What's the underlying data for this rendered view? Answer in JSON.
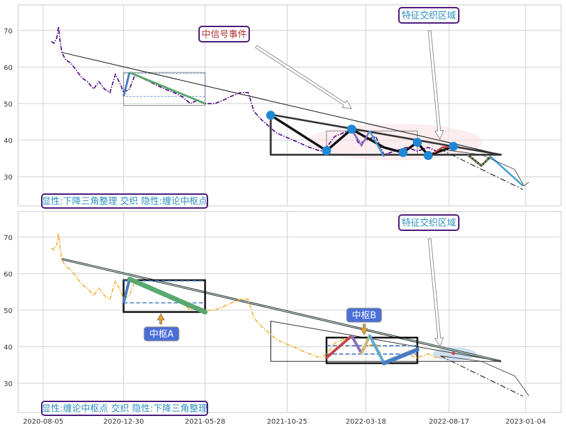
{
  "chart_data": [
    {
      "type": "line",
      "panel": "top",
      "x_ticks": [
        "2020-08-05",
        "2020-12-30",
        "2021-05-28",
        "2021-10-25",
        "2022-03-18",
        "2022-08-17",
        "2023-01-04"
      ],
      "yticks": [
        "30",
        "40",
        "50",
        "60",
        "70"
      ],
      "ylim": [
        22,
        77
      ],
      "grid": true,
      "price_color": "#4b0082",
      "price": [
        [
          "2020-08-20",
          67
        ],
        [
          "2020-08-25",
          66.5
        ],
        [
          "2020-08-30",
          68
        ],
        [
          "2020-09-02",
          71
        ],
        [
          "2020-09-05",
          67
        ],
        [
          "2020-09-08",
          64
        ],
        [
          "2020-09-15",
          62
        ],
        [
          "2020-09-25",
          61
        ],
        [
          "2020-10-05",
          59
        ],
        [
          "2020-10-15",
          57
        ],
        [
          "2020-10-25",
          56
        ],
        [
          "2020-11-05",
          54
        ],
        [
          "2020-11-15",
          56
        ],
        [
          "2020-11-25",
          54
        ],
        [
          "2020-12-05",
          53
        ],
        [
          "2020-12-15",
          58
        ],
        [
          "2020-12-25",
          55
        ],
        [
          "2020-12-30",
          53
        ],
        [
          "2021-01-10",
          54
        ],
        [
          "2021-01-20",
          58
        ],
        [
          "2021-02-01",
          57
        ],
        [
          "2021-02-15",
          56
        ],
        [
          "2021-03-01",
          55
        ],
        [
          "2021-03-15",
          54
        ],
        [
          "2021-04-01",
          53
        ],
        [
          "2021-04-15",
          52
        ],
        [
          "2021-05-01",
          50
        ],
        [
          "2021-05-15",
          51
        ],
        [
          "2021-05-28",
          50
        ],
        [
          "2021-06-15",
          50
        ],
        [
          "2021-07-01",
          51
        ],
        [
          "2021-07-15",
          52
        ],
        [
          "2021-08-01",
          53
        ],
        [
          "2021-08-15",
          53
        ],
        [
          "2021-08-25",
          48
        ],
        [
          "2021-09-05",
          46
        ],
        [
          "2021-09-20",
          44
        ],
        [
          "2021-10-05",
          42
        ],
        [
          "2021-10-20",
          41
        ],
        [
          "2021-11-05",
          40
        ],
        [
          "2021-11-20",
          39
        ],
        [
          "2021-12-05",
          38
        ],
        [
          "2021-12-25",
          37
        ],
        [
          "2022-01-05",
          38
        ],
        [
          "2022-01-20",
          41
        ],
        [
          "2022-02-05",
          42
        ],
        [
          "2022-02-20",
          43
        ],
        [
          "2022-03-05",
          39
        ],
        [
          "2022-03-18",
          40
        ],
        [
          "2022-04-05",
          41
        ],
        [
          "2022-04-20",
          36
        ],
        [
          "2022-05-10",
          37
        ],
        [
          "2022-06-01",
          38
        ],
        [
          "2022-06-20",
          37
        ],
        [
          "2022-07-10",
          38
        ],
        [
          "2022-07-25",
          37
        ],
        [
          "2022-08-17",
          37.5
        ]
      ],
      "triangle": {
        "upper": [
          [
            "2021-09-25",
            47
          ],
          [
            "2022-11-20",
            36
          ]
        ],
        "lower": [
          [
            "2021-09-25",
            36
          ],
          [
            "2022-11-20",
            36
          ]
        ]
      },
      "trend_line": [
        [
          "2020-09-08",
          64
        ],
        [
          "2022-11-20",
          36
        ]
      ],
      "forecast_curve": [
        [
          "2022-08-01",
          37.5
        ],
        [
          "2022-10-15",
          36
        ],
        [
          "2022-12-15",
          32
        ],
        [
          "2023-01-01",
          27.5
        ],
        [
          "2023-01-10",
          28.5
        ]
      ],
      "forecast_dashdot": [
        [
          "2022-08-01",
          37.5
        ],
        [
          "2022-12-30",
          26.5
        ]
      ],
      "signal_points": [
        [
          "2021-09-25",
          46.8
        ],
        [
          "2022-01-05",
          37.1
        ],
        [
          "2022-02-20",
          43
        ],
        [
          "2022-05-25",
          36.6
        ],
        [
          "2022-06-20",
          39.4
        ],
        [
          "2022-07-10",
          35.8
        ],
        [
          "2022-08-25",
          38.3
        ]
      ],
      "signal_point_color": "#1e88d4",
      "heavy_path": [
        [
          "2021-09-25",
          46.8
        ],
        [
          "2022-01-05",
          37.1
        ],
        [
          "2022-02-20",
          43
        ],
        [
          "2022-04-20",
          38
        ],
        [
          "2022-05-25",
          36.6
        ],
        [
          "2022-06-20",
          39.4
        ],
        [
          "2022-07-10",
          35.8
        ],
        [
          "2022-08-25",
          38.3
        ]
      ],
      "hub_box_small": {
        "x": [
          "2020-12-30",
          "2021-05-28"
        ],
        "y": [
          49.5,
          58.5
        ]
      },
      "hub_box_mid": {
        "x": [
          "2022-01-05",
          "2022-06-20"
        ],
        "y": [
          36,
          42.5
        ]
      },
      "green_stroke": [
        [
          "2021-01-10",
          58.5
        ],
        [
          "2021-05-28",
          50
        ]
      ],
      "blue_stroke": [
        [
          "2020-12-30",
          52
        ],
        [
          "2021-01-10",
          58.5
        ]
      ],
      "colored_tail": [
        [
          "2022-09-20",
          36
        ],
        [
          "2022-10-15",
          33
        ],
        [
          "2022-11-01",
          35.5
        ]
      ],
      "ellipse": {
        "center": [
          "2022-05-10",
          39.5
        ],
        "rx_days": 160,
        "ry": 5
      },
      "annotations": {
        "signal_event": "中信号事件",
        "feature_zone": "特征交织区域",
        "footer": "显性:下降三角整理 交织 隐性:缠论中枢点"
      }
    },
    {
      "type": "line",
      "panel": "bottom",
      "x_ticks": [
        "2020-08-05",
        "2020-12-30",
        "2021-05-28",
        "2021-10-25",
        "2022-03-18",
        "2022-08-17",
        "2023-01-04"
      ],
      "yticks": [
        "30",
        "40",
        "50",
        "60",
        "70"
      ],
      "ylim": [
        22,
        77
      ],
      "grid": true,
      "price_color": "#f0b030",
      "price": [
        [
          "2020-08-20",
          67
        ],
        [
          "2020-08-25",
          66.5
        ],
        [
          "2020-08-30",
          68
        ],
        [
          "2020-09-02",
          71
        ],
        [
          "2020-09-05",
          67
        ],
        [
          "2020-09-08",
          64
        ],
        [
          "2020-09-15",
          62
        ],
        [
          "2020-09-25",
          61
        ],
        [
          "2020-10-05",
          59
        ],
        [
          "2020-10-15",
          57
        ],
        [
          "2020-10-25",
          56
        ],
        [
          "2020-11-05",
          54
        ],
        [
          "2020-11-15",
          56
        ],
        [
          "2020-11-25",
          54
        ],
        [
          "2020-12-05",
          53
        ],
        [
          "2020-12-15",
          58
        ],
        [
          "2020-12-25",
          55
        ],
        [
          "2020-12-30",
          53
        ],
        [
          "2021-01-10",
          54
        ],
        [
          "2021-01-20",
          58
        ],
        [
          "2021-02-01",
          57
        ],
        [
          "2021-02-15",
          56
        ],
        [
          "2021-03-01",
          55
        ],
        [
          "2021-03-15",
          54
        ],
        [
          "2021-04-01",
          53
        ],
        [
          "2021-04-15",
          52
        ],
        [
          "2021-05-01",
          50
        ],
        [
          "2021-05-15",
          51
        ],
        [
          "2021-05-28",
          50
        ],
        [
          "2021-06-15",
          50
        ],
        [
          "2021-07-01",
          51
        ],
        [
          "2021-07-15",
          52
        ],
        [
          "2021-08-01",
          53
        ],
        [
          "2021-08-15",
          53
        ],
        [
          "2021-08-25",
          48
        ],
        [
          "2021-09-05",
          46
        ],
        [
          "2021-09-20",
          44
        ],
        [
          "2021-10-05",
          42
        ],
        [
          "2021-10-20",
          41
        ],
        [
          "2021-11-05",
          40
        ],
        [
          "2021-11-20",
          39
        ],
        [
          "2021-12-05",
          38
        ],
        [
          "2021-12-25",
          37
        ],
        [
          "2022-01-05",
          38
        ],
        [
          "2022-01-20",
          41
        ],
        [
          "2022-02-05",
          42
        ],
        [
          "2022-02-20",
          43
        ],
        [
          "2022-03-05",
          39
        ],
        [
          "2022-03-18",
          40
        ],
        [
          "2022-04-05",
          41
        ],
        [
          "2022-04-20",
          36
        ],
        [
          "2022-05-10",
          37
        ],
        [
          "2022-06-01",
          38
        ],
        [
          "2022-06-20",
          37
        ],
        [
          "2022-07-10",
          38
        ],
        [
          "2022-07-25",
          37
        ],
        [
          "2022-08-17",
          37.5
        ]
      ],
      "triangle": {
        "upper": [
          [
            "2021-09-25",
            47
          ],
          [
            "2022-11-20",
            36
          ]
        ],
        "lower": [
          [
            "2021-09-25",
            36
          ],
          [
            "2022-11-20",
            36
          ]
        ]
      },
      "trend_line": [
        [
          "2020-09-08",
          64
        ],
        [
          "2022-11-20",
          36
        ]
      ],
      "forecast_curve": [
        [
          "2022-08-01",
          37.5
        ],
        [
          "2022-10-15",
          36
        ],
        [
          "2022-12-15",
          32
        ],
        [
          "2023-01-01",
          28.5
        ],
        [
          "2023-01-10",
          26.5
        ]
      ],
      "forecast_dashdot": [
        [
          "2022-08-01",
          37.5
        ],
        [
          "2022-12-30",
          26.5
        ]
      ],
      "hub_box_a": {
        "x": [
          "2020-12-30",
          "2021-05-28"
        ],
        "y": [
          49.5,
          58.2
        ]
      },
      "hub_box_b": {
        "x": [
          "2022-01-05",
          "2022-06-20"
        ],
        "y": [
          35.5,
          42.5
        ]
      },
      "hub_a_dashed": [
        52,
        58
      ],
      "hub_b_dashed": [
        38,
        40.3
      ],
      "stroke_a": [
        [
          "2020-12-30",
          52
        ],
        [
          "2021-01-10",
          58.5
        ],
        [
          "2021-05-28",
          49.5
        ]
      ],
      "stroke_b": [
        [
          "2022-01-05",
          37
        ],
        [
          "2022-02-20",
          43
        ],
        [
          "2022-03-10",
          38.2
        ],
        [
          "2022-03-25",
          43
        ],
        [
          "2022-04-20",
          35.5
        ],
        [
          "2022-06-20",
          39.2
        ]
      ],
      "ellipse": {
        "center": [
          "2022-08-17",
          38
        ],
        "rx_days": 40,
        "ry": 1.8
      },
      "annotations": {
        "hub_a": "中枢A",
        "hub_b": "中枢B",
        "feature_zone": "特征交织区域",
        "footer": "显性:缠论中枢点 交织 隐性:下降三角整理"
      }
    }
  ]
}
